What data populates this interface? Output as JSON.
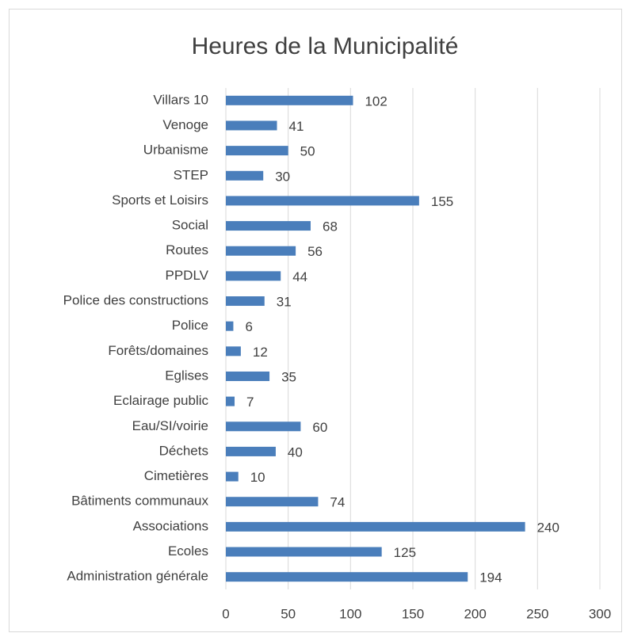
{
  "chart_data": {
    "type": "barh",
    "title": "Heures de la Municipalité",
    "categories": [
      "Villars 10",
      "Venoge",
      "Urbanisme",
      "STEP",
      "Sports et Loisirs",
      "Social",
      "Routes",
      "PPDLV",
      "Police des constructions",
      "Police",
      "Forêts/domaines",
      "Eglises",
      "Eclairage public",
      "Eau/SI/voirie",
      "Déchets",
      "Cimetières",
      "Bâtiments communaux",
      "Associations",
      "Ecoles",
      "Administration générale"
    ],
    "values": [
      102,
      41,
      50,
      30,
      155,
      68,
      56,
      44,
      31,
      6,
      12,
      35,
      7,
      60,
      40,
      10,
      74,
      240,
      125,
      194
    ],
    "color": "#4a7ebb",
    "xlim": [
      0,
      300
    ],
    "xticks": [
      0,
      50,
      100,
      150,
      200,
      250,
      300
    ],
    "grid": true
  }
}
